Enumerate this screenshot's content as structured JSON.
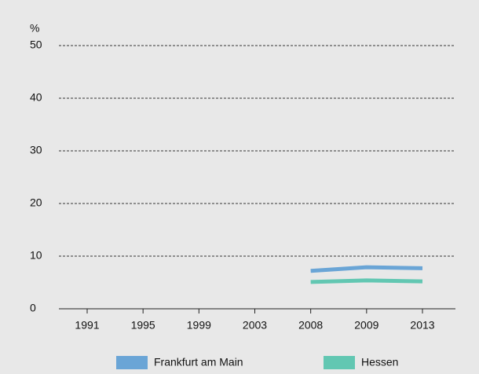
{
  "chart_data": {
    "type": "line",
    "y_label": "%",
    "categories": [
      "1991",
      "1995",
      "1999",
      "2003",
      "2008",
      "2009",
      "2013"
    ],
    "series": [
      {
        "name": "Frankfurt am Main",
        "color": "#6aa5d6",
        "values": [
          null,
          null,
          null,
          null,
          7.2,
          7.9,
          7.7
        ]
      },
      {
        "name": "Hessen",
        "color": "#62c7b2",
        "values": [
          null,
          null,
          null,
          null,
          5.1,
          5.4,
          5.2
        ]
      }
    ],
    "ylim": [
      0,
      50
    ],
    "yticks": [
      0,
      10,
      20,
      30,
      40,
      50
    ],
    "grid": true
  }
}
